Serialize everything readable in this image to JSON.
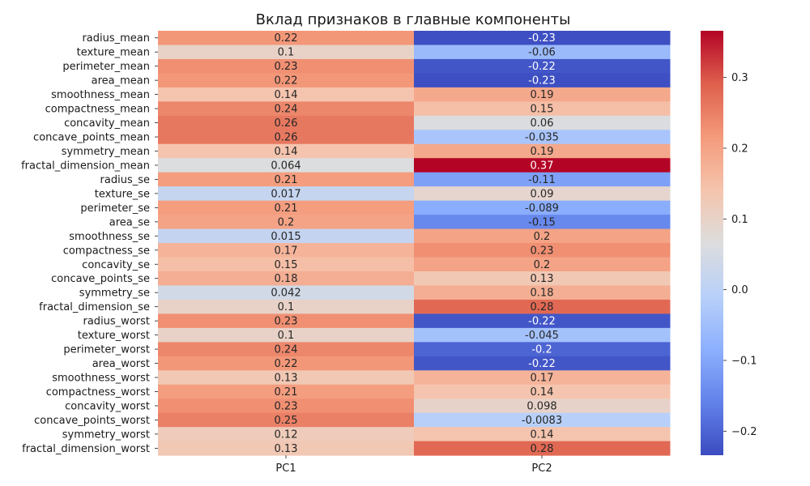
{
  "chart_data": {
    "type": "heatmap",
    "title": "Вклад признаков в главные компоненты",
    "xlabel": "",
    "ylabel": "",
    "columns": [
      "PC1",
      "PC2"
    ],
    "rows": [
      "radius_mean",
      "texture_mean",
      "perimeter_mean",
      "area_mean",
      "smoothness_mean",
      "compactness_mean",
      "concavity_mean",
      "concave_points_mean",
      "symmetry_mean",
      "fractal_dimension_mean",
      "radius_se",
      "texture_se",
      "perimeter_se",
      "area_se",
      "smoothness_se",
      "compactness_se",
      "concavity_se",
      "concave_points_se",
      "symmetry_se",
      "fractal_dimension_se",
      "radius_worst",
      "texture_worst",
      "perimeter_worst",
      "area_worst",
      "smoothness_worst",
      "compactness_worst",
      "concavity_worst",
      "concave_points_worst",
      "symmetry_worst",
      "fractal_dimension_worst"
    ],
    "values": [
      [
        0.22,
        -0.23
      ],
      [
        0.1,
        -0.06
      ],
      [
        0.23,
        -0.22
      ],
      [
        0.22,
        -0.23
      ],
      [
        0.14,
        0.19
      ],
      [
        0.24,
        0.15
      ],
      [
        0.26,
        0.06
      ],
      [
        0.26,
        -0.035
      ],
      [
        0.14,
        0.19
      ],
      [
        0.064,
        0.37
      ],
      [
        0.21,
        -0.11
      ],
      [
        0.017,
        0.09
      ],
      [
        0.21,
        -0.089
      ],
      [
        0.2,
        -0.15
      ],
      [
        0.015,
        0.2
      ],
      [
        0.17,
        0.23
      ],
      [
        0.15,
        0.2
      ],
      [
        0.18,
        0.13
      ],
      [
        0.042,
        0.18
      ],
      [
        0.1,
        0.28
      ],
      [
        0.23,
        -0.22
      ],
      [
        0.1,
        -0.045
      ],
      [
        0.24,
        -0.2
      ],
      [
        0.22,
        -0.22
      ],
      [
        0.13,
        0.17
      ],
      [
        0.21,
        0.14
      ],
      [
        0.23,
        0.098
      ],
      [
        0.25,
        -0.0083
      ],
      [
        0.12,
        0.14
      ],
      [
        0.13,
        0.28
      ]
    ],
    "colormap": "coolwarm",
    "vmin": -0.234,
    "vmax": 0.366,
    "colorbar_ticks": [
      0.3,
      0.2,
      0.1,
      0.0,
      -0.1,
      -0.2
    ],
    "colorbar_tick_labels": [
      "0.3",
      "0.2",
      "0.1",
      "0.0",
      "−0.1",
      "−0.2"
    ],
    "grid": false,
    "colorbar_position": "right"
  }
}
